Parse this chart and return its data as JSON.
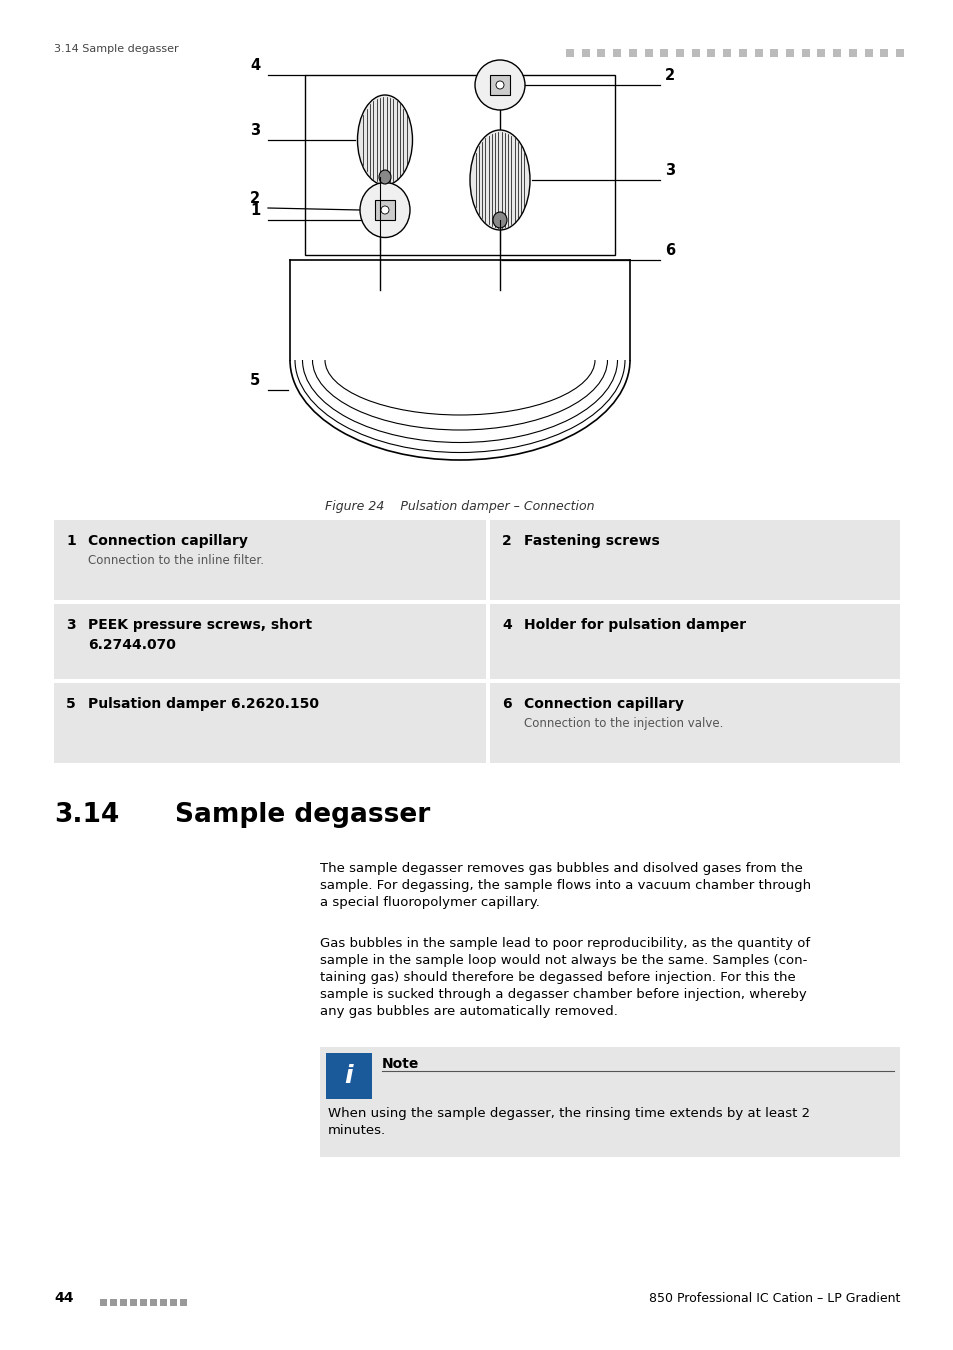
{
  "page_header_left": "3.14 Sample degasser",
  "figure_caption": "Figure 24    Pulsation damper – Connection",
  "section_number": "3.14",
  "section_title": "Sample degasser",
  "body_text_1": "The sample degasser removes gas bubbles and disolved gases from the\nsample. For degassing, the sample flows into a vacuum chamber through\na special fluoropolymer capillary.",
  "body_text_2": "Gas bubbles in the sample lead to poor reproducibility, as the quantity of\nsample in the sample loop would not always be the same. Samples (con-\ntaining gas) should therefore be degassed before injection. For this the\nsample is sucked through a degasser chamber before injection, whereby\nany gas bubbles are automatically removed.",
  "note_title": "Note",
  "note_text": "When using the sample degasser, the rinsing time extends by at least 2\nminutes.",
  "page_number_left": "44",
  "page_number_right": "850 Professional IC Cation – LP Gradient",
  "table": [
    {
      "num": "1",
      "bold": "Connection capillary",
      "sub": "Connection to the inline filter."
    },
    {
      "num": "2",
      "bold": "Fastening screws",
      "sub": ""
    },
    {
      "num": "3",
      "bold": "PEEK pressure screws, short",
      "sub2": "6.2744.070",
      "sub": ""
    },
    {
      "num": "4",
      "bold": "Holder for pulsation damper",
      "sub": ""
    },
    {
      "num": "5",
      "bold": "Pulsation damper 6.2620.150",
      "sub": ""
    },
    {
      "num": "6",
      "bold": "Connection capillary",
      "sub": "Connection to the injection valve."
    }
  ],
  "bg_color": "#ffffff",
  "table_bg": "#e6e6e6",
  "note_bg": "#e6e6e6",
  "note_icon_bg": "#1a5a9a",
  "header_dot_color": "#bbbbbb",
  "footer_dot_color": "#999999"
}
